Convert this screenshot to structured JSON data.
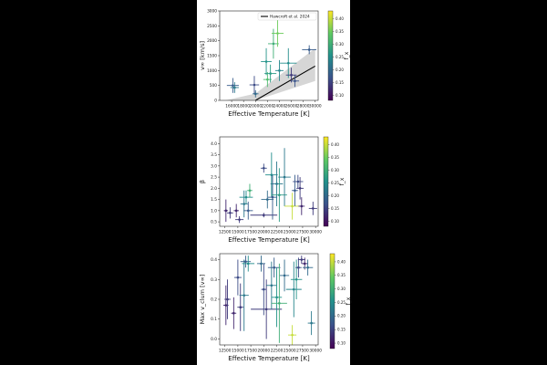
{
  "figure": {
    "background": "#000000",
    "paper": "#ffffff",
    "colormap": [
      "#440154",
      "#3b528b",
      "#21918c",
      "#5ec962",
      "#fde725"
    ]
  },
  "chart_data": [
    {
      "type": "scatter",
      "subtype": "scatter-with-error-bars",
      "xlabel": "Effective Temperature [K]",
      "ylabel": "v∞ [km/s]",
      "colorbar_label": "f_x",
      "xlim": [
        14000,
        30500
      ],
      "ylim": [
        0,
        3000
      ],
      "xticks": [
        16000,
        18000,
        20000,
        22000,
        24000,
        26000,
        28000,
        30000
      ],
      "yticks": [
        0,
        500,
        1000,
        1500,
        2000,
        2500,
        3000
      ],
      "clim": [
        0.08,
        0.43
      ],
      "cticks": [
        0.1,
        0.15,
        0.2,
        0.25,
        0.3,
        0.35,
        0.4
      ],
      "grid": false,
      "legend": {
        "position": "top-right",
        "entries": [
          "Hawcroft et al. 2024"
        ]
      },
      "model": {
        "name": "Hawcroft et al. 2024",
        "line": [
          [
            20000,
            0
          ],
          [
            30000,
            1150
          ]
        ],
        "band_lower": [
          [
            20000,
            0
          ],
          [
            30000,
            650
          ]
        ],
        "band_upper": [
          [
            15000,
            0
          ],
          [
            20000,
            230
          ],
          [
            30000,
            1750
          ]
        ]
      },
      "points": [
        {
          "x": 16200,
          "y": 500,
          "xerr": 1000,
          "yerr": 250,
          "c": 0.18
        },
        {
          "x": 16500,
          "y": 430,
          "xerr": 700,
          "yerr": 180,
          "c": 0.22
        },
        {
          "x": 19800,
          "y": 520,
          "xerr": 800,
          "yerr": 300,
          "c": 0.16
        },
        {
          "x": 20000,
          "y": 220,
          "xerr": 500,
          "yerr": 120,
          "c": 0.2
        },
        {
          "x": 21800,
          "y": 1300,
          "xerr": 900,
          "yerr": 450,
          "c": 0.26
        },
        {
          "x": 22000,
          "y": 700,
          "xerr": 700,
          "yerr": 250,
          "c": 0.32
        },
        {
          "x": 22500,
          "y": 900,
          "xerr": 1000,
          "yerr": 300,
          "c": 0.27
        },
        {
          "x": 23000,
          "y": 1900,
          "xerr": 900,
          "yerr": 500,
          "c": 0.3
        },
        {
          "x": 23700,
          "y": 2250,
          "xerr": 1000,
          "yerr": 450,
          "c": 0.35
        },
        {
          "x": 24000,
          "y": 1000,
          "xerr": 700,
          "yerr": 350,
          "c": 0.24
        },
        {
          "x": 25500,
          "y": 1250,
          "xerr": 1400,
          "yerr": 500,
          "c": 0.25
        },
        {
          "x": 26000,
          "y": 850,
          "xerr": 900,
          "yerr": 250,
          "c": 0.14
        },
        {
          "x": 26600,
          "y": 650,
          "xerr": 700,
          "yerr": 200,
          "c": 0.17
        },
        {
          "x": 29000,
          "y": 1700,
          "xerr": 1200,
          "yerr": 150,
          "c": 0.18
        }
      ]
    },
    {
      "type": "scatter",
      "subtype": "scatter-with-error-bars",
      "xlabel": "Effective Temperature [K]",
      "ylabel": "β",
      "colorbar_label": "f_x",
      "xlim": [
        11500,
        30500
      ],
      "ylim": [
        0.3,
        4.3
      ],
      "xticks": [
        12500,
        15000,
        17500,
        20000,
        22500,
        25000,
        27500,
        30000
      ],
      "yticks": [
        0.5,
        1.0,
        1.5,
        2.0,
        2.5,
        3.0,
        3.5,
        4.0
      ],
      "clim": [
        0.08,
        0.43
      ],
      "cticks": [
        0.1,
        0.15,
        0.2,
        0.25,
        0.3,
        0.35,
        0.4
      ],
      "grid": false,
      "points": [
        {
          "x": 12700,
          "y": 1.0,
          "xerr": 400,
          "yerr": 0.5,
          "c": 0.12
        },
        {
          "x": 13500,
          "y": 0.9,
          "xerr": 600,
          "yerr": 0.25,
          "c": 0.14
        },
        {
          "x": 14700,
          "y": 1.0,
          "xerr": 500,
          "yerr": 0.3,
          "c": 0.12
        },
        {
          "x": 15300,
          "y": 0.6,
          "xerr": 800,
          "yerr": 0.15,
          "c": 0.14
        },
        {
          "x": 16200,
          "y": 1.3,
          "xerr": 700,
          "yerr": 0.6,
          "c": 0.22
        },
        {
          "x": 16600,
          "y": 1.6,
          "xerr": 1300,
          "yerr": 0.3,
          "c": 0.25
        },
        {
          "x": 17000,
          "y": 1.0,
          "xerr": 900,
          "yerr": 0.4,
          "c": 0.18
        },
        {
          "x": 17300,
          "y": 1.9,
          "xerr": 500,
          "yerr": 0.3,
          "c": 0.3
        },
        {
          "x": 20000,
          "y": 0.8,
          "xerr": 2600,
          "yerr": 0.1,
          "c": 0.14
        },
        {
          "x": 20000,
          "y": 2.9,
          "xerr": 600,
          "yerr": 0.2,
          "c": 0.16
        },
        {
          "x": 20700,
          "y": 1.5,
          "xerr": 1200,
          "yerr": 0.4,
          "c": 0.2
        },
        {
          "x": 21500,
          "y": 2.6,
          "xerr": 1200,
          "yerr": 1.0,
          "c": 0.25
        },
        {
          "x": 21700,
          "y": 1.6,
          "xerr": 900,
          "yerr": 1.0,
          "c": 0.18
        },
        {
          "x": 22500,
          "y": 2.2,
          "xerr": 1200,
          "yerr": 1.0,
          "c": 0.22
        },
        {
          "x": 23000,
          "y": 1.7,
          "xerr": 1500,
          "yerr": 1.2,
          "c": 0.27
        },
        {
          "x": 24000,
          "y": 2.5,
          "xerr": 1200,
          "yerr": 1.3,
          "c": 0.22
        },
        {
          "x": 25500,
          "y": 1.2,
          "xerr": 1500,
          "yerr": 0.6,
          "c": 0.4
        },
        {
          "x": 26000,
          "y": 1.9,
          "xerr": 600,
          "yerr": 0.7,
          "c": 0.18
        },
        {
          "x": 26600,
          "y": 2.3,
          "xerr": 1000,
          "yerr": 0.3,
          "c": 0.16
        },
        {
          "x": 27000,
          "y": 2.0,
          "xerr": 700,
          "yerr": 0.5,
          "c": 0.14
        },
        {
          "x": 27300,
          "y": 1.2,
          "xerr": 600,
          "yerr": 0.4,
          "c": 0.12
        },
        {
          "x": 29500,
          "y": 1.1,
          "xerr": 800,
          "yerr": 0.3,
          "c": 0.14
        }
      ]
    },
    {
      "type": "scatter",
      "subtype": "scatter-with-error-bars",
      "xlabel": "Effective Temperature [K]",
      "ylabel": "Max v_clum [v∞]",
      "colorbar_label": "f_x",
      "xlim": [
        11500,
        30500
      ],
      "ylim": [
        -0.03,
        0.43
      ],
      "xticks": [
        12500,
        15000,
        17500,
        20000,
        22500,
        25000,
        27500,
        30000
      ],
      "yticks": [
        0.0,
        0.1,
        0.2,
        0.3,
        0.4
      ],
      "clim": [
        0.08,
        0.43
      ],
      "cticks": [
        0.1,
        0.15,
        0.2,
        0.25,
        0.3,
        0.35,
        0.4
      ],
      "grid": false,
      "points": [
        {
          "x": 12700,
          "y": 0.17,
          "xerr": 500,
          "yerr": 0.1,
          "c": 0.12
        },
        {
          "x": 13000,
          "y": 0.2,
          "xerr": 600,
          "yerr": 0.1,
          "c": 0.14
        },
        {
          "x": 14200,
          "y": 0.13,
          "xerr": 500,
          "yerr": 0.08,
          "c": 0.12
        },
        {
          "x": 15000,
          "y": 0.31,
          "xerr": 700,
          "yerr": 0.09,
          "c": 0.16
        },
        {
          "x": 15500,
          "y": 0.16,
          "xerr": 600,
          "yerr": 0.12,
          "c": 0.14
        },
        {
          "x": 16200,
          "y": 0.22,
          "xerr": 900,
          "yerr": 0.18,
          "c": 0.22
        },
        {
          "x": 16500,
          "y": 0.39,
          "xerr": 1000,
          "yerr": 0.03,
          "c": 0.18
        },
        {
          "x": 17000,
          "y": 0.38,
          "xerr": 1200,
          "yerr": 0.04,
          "c": 0.25
        },
        {
          "x": 19500,
          "y": 0.38,
          "xerr": 800,
          "yerr": 0.04,
          "c": 0.2
        },
        {
          "x": 20000,
          "y": 0.25,
          "xerr": 500,
          "yerr": 0.13,
          "c": 0.16
        },
        {
          "x": 20500,
          "y": 0.15,
          "xerr": 3000,
          "yerr": 0.15,
          "c": 0.14
        },
        {
          "x": 21500,
          "y": 0.27,
          "xerr": 1000,
          "yerr": 0.12,
          "c": 0.22
        },
        {
          "x": 22000,
          "y": 0.36,
          "xerr": 1200,
          "yerr": 0.05,
          "c": 0.18
        },
        {
          "x": 22500,
          "y": 0.21,
          "xerr": 1000,
          "yerr": 0.15,
          "c": 0.26
        },
        {
          "x": 23000,
          "y": 0.18,
          "xerr": 1500,
          "yerr": 0.2,
          "c": 0.3
        },
        {
          "x": 24000,
          "y": 0.32,
          "xerr": 900,
          "yerr": 0.08,
          "c": 0.2
        },
        {
          "x": 25500,
          "y": 0.02,
          "xerr": 800,
          "yerr": 0.05,
          "c": 0.4
        },
        {
          "x": 25800,
          "y": 0.25,
          "xerr": 1500,
          "yerr": 0.14,
          "c": 0.24
        },
        {
          "x": 26300,
          "y": 0.3,
          "xerr": 1100,
          "yerr": 0.1,
          "c": 0.26
        },
        {
          "x": 26700,
          "y": 0.36,
          "xerr": 600,
          "yerr": 0.05,
          "c": 0.16
        },
        {
          "x": 27300,
          "y": 0.4,
          "xerr": 700,
          "yerr": 0.02,
          "c": 0.14
        },
        {
          "x": 27900,
          "y": 0.38,
          "xerr": 600,
          "yerr": 0.03,
          "c": 0.12
        },
        {
          "x": 28500,
          "y": 0.36,
          "xerr": 1000,
          "yerr": 0.04,
          "c": 0.2
        },
        {
          "x": 29200,
          "y": 0.08,
          "xerr": 700,
          "yerr": 0.06,
          "c": 0.22
        }
      ]
    }
  ]
}
